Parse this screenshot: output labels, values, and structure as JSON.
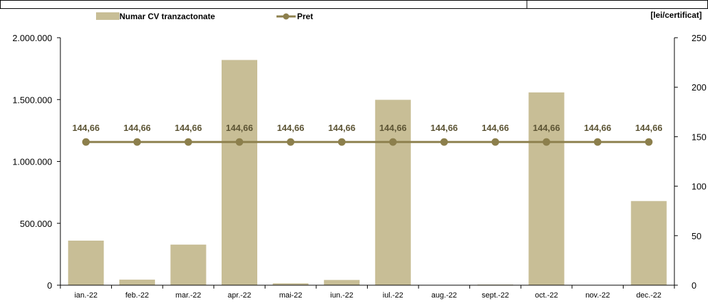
{
  "chart_data": {
    "type": "bar",
    "categories": [
      "ian.-22",
      "feb.-22",
      "mar.-22",
      "apr.-22",
      "mai-22",
      "iun.-22",
      "iul.-22",
      "aug.-22",
      "sept.-22",
      "oct.-22",
      "nov.-22",
      "dec.-22"
    ],
    "series": [
      {
        "name": "Numar CV tranzactonate",
        "type": "bar",
        "axis": "left",
        "values": [
          360000,
          45000,
          328000,
          1820000,
          15000,
          42000,
          1498000,
          2000,
          5000,
          1558000,
          1000,
          680000
        ]
      },
      {
        "name": "Pret",
        "type": "line",
        "axis": "right",
        "values": [
          144.66,
          144.66,
          144.66,
          144.66,
          144.66,
          144.66,
          144.66,
          144.66,
          144.66,
          144.66,
          144.66,
          144.66
        ],
        "data_labels": [
          "144,66",
          "144,66",
          "144,66",
          "144,66",
          "144,66",
          "144,66",
          "144,66",
          "144,66",
          "144,66",
          "144,66",
          "144,66",
          "144,66"
        ]
      }
    ],
    "y_left": {
      "min": 0,
      "max": 2000000,
      "step": 500000,
      "ticks": [
        0,
        500000,
        1000000,
        1500000,
        2000000
      ],
      "tick_labels": [
        "0",
        "500.000",
        "1.000.000",
        "1.500.000",
        "2.000.000"
      ]
    },
    "y_right": {
      "min": 0,
      "max": 250,
      "step": 50,
      "ticks": [
        0,
        50,
        100,
        150,
        200,
        250
      ],
      "tick_labels": [
        "0",
        "50",
        "100",
        "150",
        "200",
        "250"
      ],
      "unit_label": "[lei/certificat]"
    },
    "legend": {
      "position": "top-left",
      "items": [
        {
          "label": "Numar CV tranzactonate",
          "kind": "bar"
        },
        {
          "label": "Pret",
          "kind": "line"
        }
      ]
    },
    "grid": false,
    "colors": {
      "bar": "#c8be96",
      "line": "#8c7f4c",
      "label": "#5c5434",
      "axis": "#000000"
    }
  }
}
